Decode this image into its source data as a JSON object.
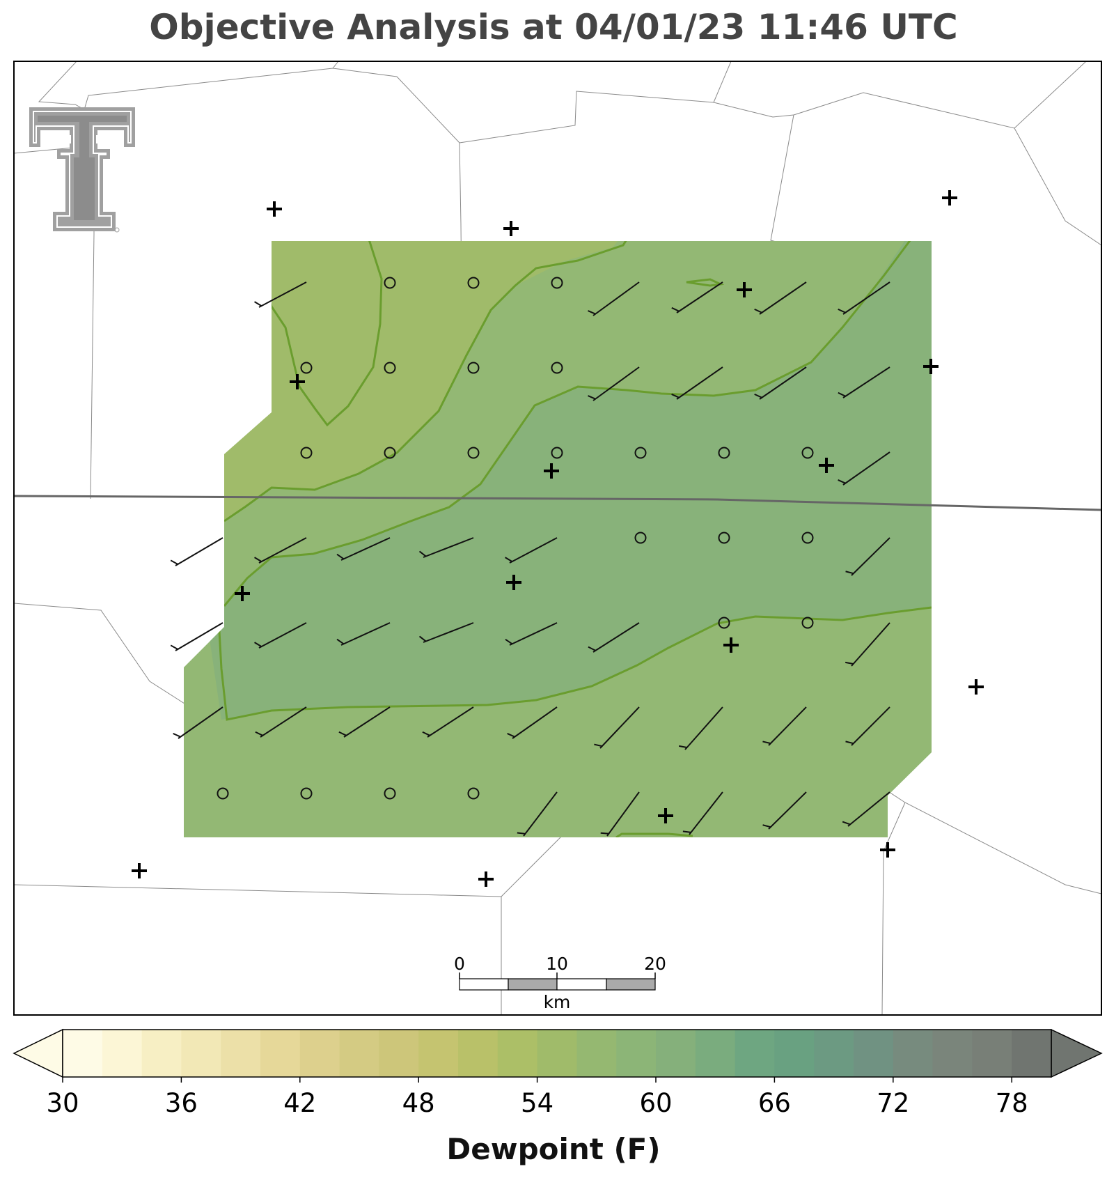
{
  "title": "Objective Analysis at 04/01/23 11:46 UTC",
  "logo": {
    "name": "texas-tech-double-t-logo",
    "color": "#9a9a9a"
  },
  "scale_bar": {
    "ticks": [
      "0",
      "10",
      "20"
    ],
    "unit": "km"
  },
  "colorbar": {
    "label": "Dewpoint (F)",
    "ticks": [
      "30",
      "36",
      "42",
      "48",
      "54",
      "60",
      "66",
      "72",
      "78"
    ],
    "extend": "both",
    "colors": [
      "#fefbe6",
      "#fcf6d6",
      "#f7efc4",
      "#f2e8b6",
      "#ece0a8",
      "#e6d899",
      "#ddd08d",
      "#d4cb83",
      "#cdc67a",
      "#c5c470",
      "#b9c169",
      "#acbf67",
      "#a0bb6a",
      "#95b871",
      "#8cb577",
      "#85b07b",
      "#7aac7e",
      "#6ea681",
      "#69a181",
      "#6c9a82",
      "#709282",
      "#778b7e",
      "#7a857b",
      "#787f77",
      "#707570"
    ]
  },
  "analysis_fill_colors": {
    "band_52_54": "#a8c16c",
    "band_54_56": "#9fbb6e",
    "band_56_58": "#93b874",
    "band_58_60": "#88b27a",
    "contour_line": "#6a9d2e"
  },
  "station_marker": "plus",
  "calm_marker": "circle"
}
